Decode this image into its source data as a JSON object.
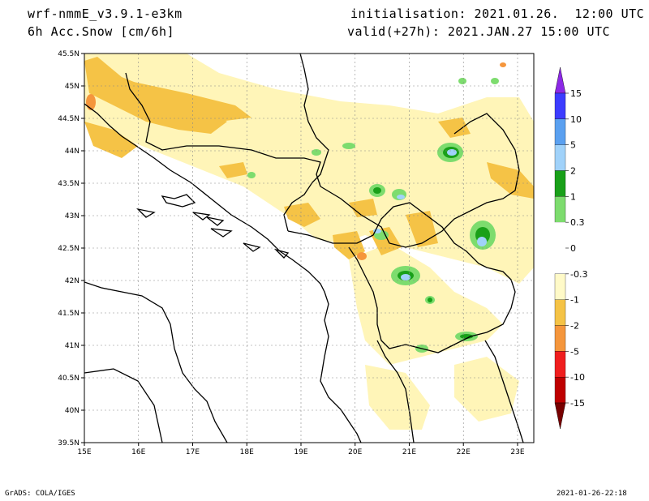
{
  "header": {
    "model": "wrf-nmmE_v3.9.1-e3km",
    "variable": "6h Acc.Snow [cm/6h]",
    "initialisation": "initialisation: 2021.01.26.  12:00 UTC",
    "valid": "valid(+27h): 2021.JAN.27 15:00 UTC"
  },
  "footer": {
    "credit": "GrADS: COLA/IGES",
    "timestamp": "2021-01-26-22:18"
  },
  "axes": {
    "lat_labels": [
      "45.5N",
      "45N",
      "44.5N",
      "44N",
      "43.5N",
      "43N",
      "42.5N",
      "42N",
      "41.5N",
      "41N",
      "40.5N",
      "40N",
      "39.5N"
    ],
    "lat_values": [
      45.5,
      45,
      44.5,
      44,
      43.5,
      43,
      42.5,
      42,
      41.5,
      41,
      40.5,
      40,
      39.5
    ],
    "lon_labels": [
      "15E",
      "16E",
      "17E",
      "18E",
      "19E",
      "20E",
      "21E",
      "22E",
      "23E"
    ],
    "lon_values": [
      15,
      16,
      17,
      18,
      19,
      20,
      21,
      22,
      23
    ],
    "lat_range": [
      39.5,
      45.5
    ],
    "lon_range": [
      15,
      23.3
    ],
    "grid": true
  },
  "colorbar": {
    "labels": [
      "15",
      "10",
      "5",
      "2",
      "1",
      "0.3",
      "0",
      "-0.3",
      "-1",
      "-2",
      "-5",
      "-10",
      "-15"
    ],
    "colors": [
      "#3c3cff",
      "#5aa0f0",
      "#a0d2fa",
      "#19a019",
      "#7ddc6e",
      "#ffffff",
      "#ffffff",
      "#fffac8",
      "#f5c346",
      "#f5963c",
      "#f01e1e",
      "#be0000"
    ],
    "top_arrow_color": "#8c28e6",
    "bottom_arrow_color": "#780000"
  },
  "colors": {
    "light_yellow": "#fff5b8",
    "yellow": "#f5c346",
    "orange": "#f5963c",
    "light_green": "#7ddc6e",
    "green": "#19a019",
    "light_blue": "#a0d2fa",
    "blue": "#5aa0f0"
  }
}
